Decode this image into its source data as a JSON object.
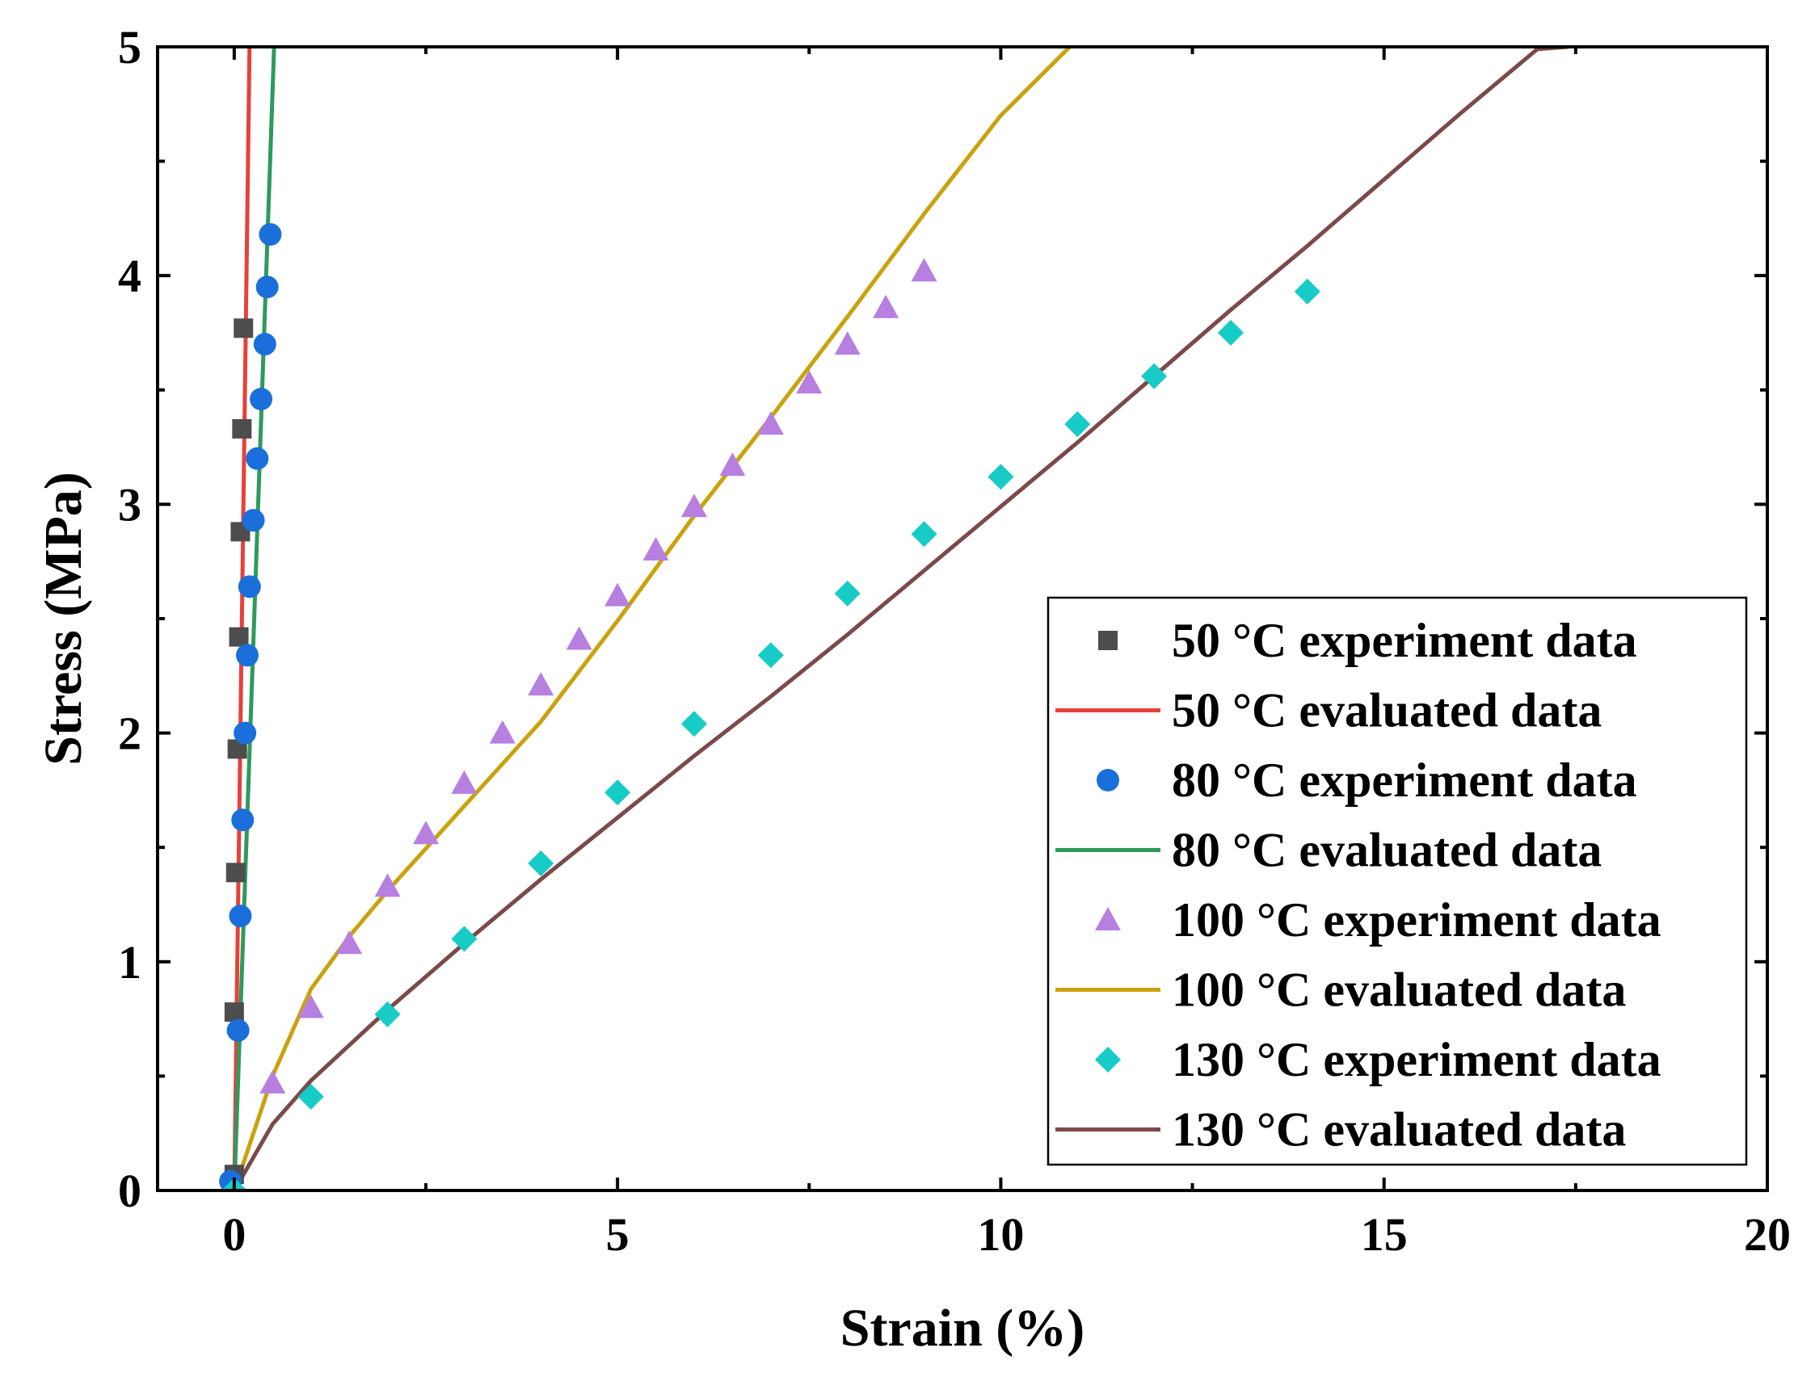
{
  "chart_data": {
    "type": "scatter",
    "xlabel": "Strain (%)",
    "ylabel": "Stress (MPa)",
    "xlim": [
      -1,
      20
    ],
    "ylim": [
      0,
      5
    ],
    "xticks": [
      "0",
      "5",
      "10",
      "15",
      "20"
    ],
    "yticks": [
      "0",
      "1",
      "2",
      "3",
      "4",
      "5"
    ],
    "grid": false,
    "legend_position": "bottom-right",
    "series": [
      {
        "name": "50 °C experiment data",
        "kind": "markers",
        "marker": "square",
        "color": "#4d4d4d",
        "x": [
          0.0,
          0.0,
          0.02,
          0.04,
          0.06,
          0.08,
          0.1,
          0.12
        ],
        "y": [
          0.07,
          0.78,
          1.39,
          1.93,
          2.42,
          2.88,
          3.33,
          3.77
        ]
      },
      {
        "name": "50 °C evaluated data",
        "kind": "line",
        "color": "#e8403a",
        "x": [
          0.0,
          0.2
        ],
        "y": [
          0.0,
          5.0
        ]
      },
      {
        "name": "80 °C experiment data",
        "kind": "markers",
        "marker": "circle",
        "color": "#1a6fdb",
        "x": [
          -0.05,
          0.05,
          0.08,
          0.11,
          0.14,
          0.17,
          0.2,
          0.25,
          0.3,
          0.35,
          0.4,
          0.43,
          0.47
        ],
        "y": [
          0.04,
          0.7,
          1.2,
          1.62,
          2.0,
          2.34,
          2.64,
          2.93,
          3.2,
          3.46,
          3.7,
          3.95,
          4.18
        ]
      },
      {
        "name": "80 °C evaluated data",
        "kind": "line",
        "color": "#2e9a5c",
        "x": [
          0.0,
          0.52
        ],
        "y": [
          0.0,
          5.0
        ]
      },
      {
        "name": "100 °C experiment data",
        "kind": "markers",
        "marker": "triangle",
        "color": "#b77fe0",
        "x": [
          0.0,
          0.5,
          1.0,
          1.5,
          2.0,
          2.5,
          3.0,
          3.5,
          4.0,
          4.5,
          5.0,
          5.5,
          6.0,
          6.5,
          7.0,
          7.5,
          8.0,
          8.5,
          9.0
        ],
        "y": [
          0.0,
          0.47,
          0.8,
          1.08,
          1.33,
          1.56,
          1.78,
          2.0,
          2.21,
          2.41,
          2.6,
          2.8,
          2.99,
          3.17,
          3.35,
          3.53,
          3.7,
          3.86,
          4.02
        ]
      },
      {
        "name": "100 °C evaluated data",
        "kind": "line",
        "color": "#c9a20e",
        "x": [
          0.0,
          0.5,
          1.0,
          1.5,
          2.0,
          3.0,
          4.0,
          5.0,
          6.0,
          7.0,
          8.0,
          9.0,
          10.0,
          10.9
        ],
        "y": [
          0.0,
          0.5,
          0.88,
          1.11,
          1.31,
          1.68,
          2.05,
          2.49,
          2.95,
          3.38,
          3.82,
          4.27,
          4.7,
          5.0
        ]
      },
      {
        "name": "130 °C experiment data",
        "kind": "markers",
        "marker": "diamond",
        "color": "#17cbc7",
        "x": [
          0.0,
          1.0,
          2.0,
          3.0,
          4.0,
          5.0,
          6.0,
          7.0,
          8.0,
          9.0,
          10.0,
          11.0,
          12.0,
          13.0,
          14.0
        ],
        "y": [
          0.0,
          0.41,
          0.77,
          1.1,
          1.43,
          1.74,
          2.04,
          2.34,
          2.61,
          2.87,
          3.12,
          3.35,
          3.56,
          3.75,
          3.93
        ]
      },
      {
        "name": "130 °C evaluated data",
        "kind": "line",
        "color": "#7b4a4a",
        "x": [
          0.0,
          0.5,
          1.0,
          2.0,
          3.0,
          4.0,
          5.0,
          6.0,
          7.0,
          8.0,
          9.0,
          10.0,
          11.0,
          12.0,
          13.0,
          14.0,
          15.0,
          16.0,
          17.0,
          17.4
        ],
        "y": [
          0.0,
          0.29,
          0.48,
          0.79,
          1.08,
          1.36,
          1.63,
          1.9,
          2.16,
          2.43,
          2.71,
          2.99,
          3.27,
          3.56,
          3.85,
          4.13,
          4.42,
          4.71,
          4.99,
          5.0
        ]
      }
    ]
  }
}
